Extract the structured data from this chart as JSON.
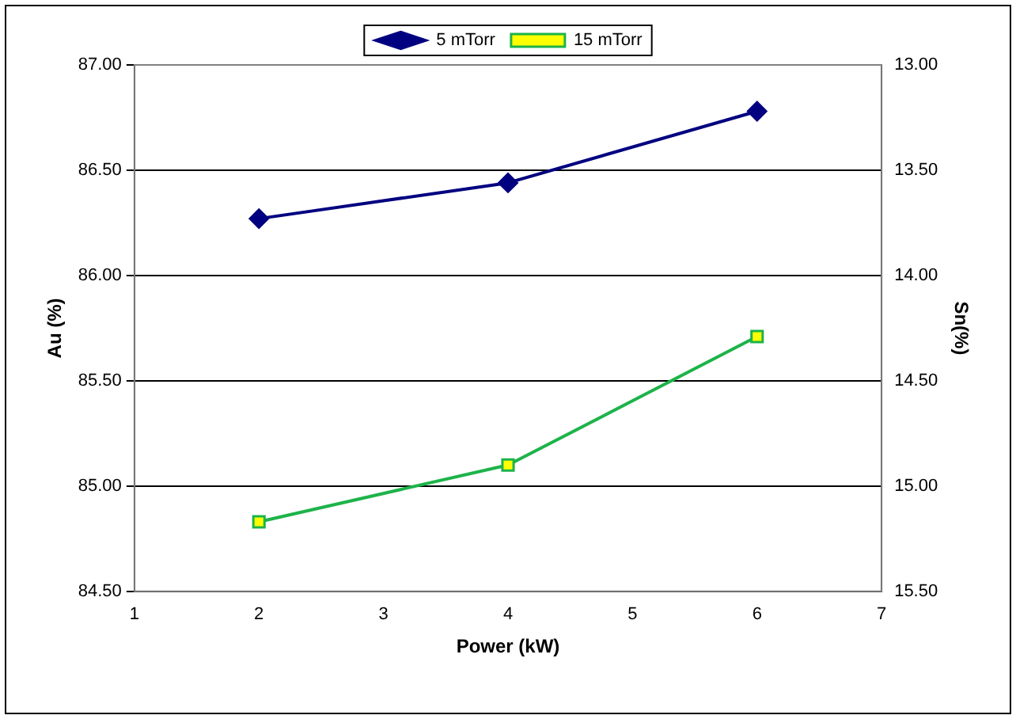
{
  "chart_data": {
    "type": "line",
    "xlabel": "Power (kW)",
    "ylabel": "Au (%)",
    "y2label": "Sn(%)",
    "x": [
      2,
      4,
      6
    ],
    "series": [
      {
        "name": "5 mTorr",
        "color": "#000080",
        "marker": "diamond",
        "values": [
          86.27,
          86.44,
          86.78
        ]
      },
      {
        "name": "15 mTorr",
        "color": "#1db34a",
        "marker": "square",
        "values": [
          84.83,
          85.1,
          85.71
        ]
      }
    ],
    "xlim": [
      1,
      7
    ],
    "xticks": [
      1,
      2,
      3,
      4,
      5,
      6,
      7
    ],
    "ylim": [
      84.5,
      87
    ],
    "yticks": [
      {
        "value": 84.5,
        "label": "84.50"
      },
      {
        "value": 85,
        "label": "85.00"
      },
      {
        "value": 85.5,
        "label": "85.50"
      },
      {
        "value": 86,
        "label": "86.00"
      },
      {
        "value": 86.5,
        "label": "86.50"
      },
      {
        "value": 87,
        "label": "87.00"
      }
    ],
    "y2lim": [
      15.5,
      13
    ],
    "y2ticks": [
      {
        "value": 15.5,
        "label": "15.50"
      },
      {
        "value": 15,
        "label": "15.00"
      },
      {
        "value": 14.5,
        "label": "14.50"
      },
      {
        "value": 14,
        "label": "14.00"
      },
      {
        "value": 13.5,
        "label": "13.50"
      },
      {
        "value": 13,
        "label": "13.00"
      }
    ],
    "grid": "y",
    "legend": "top",
    "line_style": "solid"
  }
}
